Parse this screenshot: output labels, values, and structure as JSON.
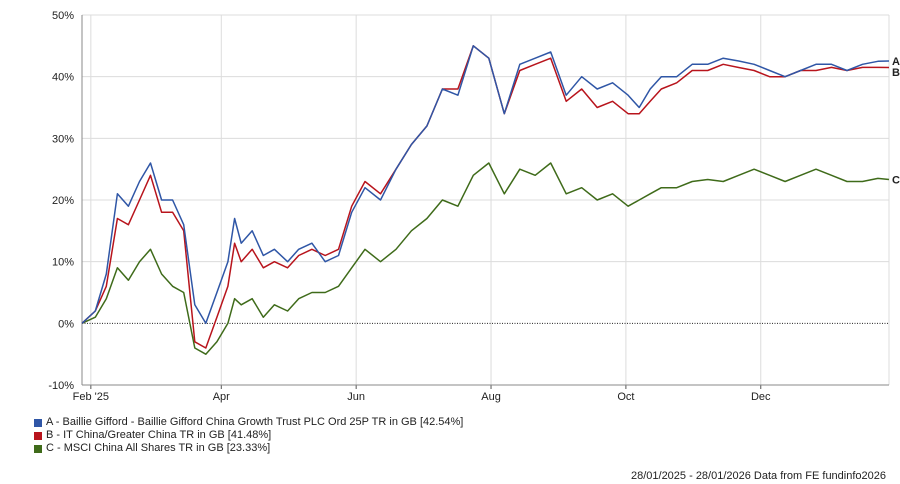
{
  "chart_data": {
    "type": "line",
    "ylim": [
      -10,
      50
    ],
    "y_ticks": [
      -10,
      0,
      10,
      20,
      30,
      40,
      50
    ],
    "y_tick_labels": [
      "-10%",
      "0%",
      "10%",
      "20%",
      "30%",
      "40%",
      "50%"
    ],
    "x_range": [
      "2025-01-28",
      "2026-01-28"
    ],
    "x_ticks": [
      {
        "date": "2025-02-01",
        "label": "Feb '25"
      },
      {
        "date": "2025-04-01",
        "label": "Apr"
      },
      {
        "date": "2025-06-01",
        "label": "Jun"
      },
      {
        "date": "2025-08-01",
        "label": "Aug"
      },
      {
        "date": "2025-10-01",
        "label": "Oct"
      },
      {
        "date": "2025-12-01",
        "label": "Dec"
      }
    ],
    "grid": true,
    "zero_line": true,
    "series": [
      {
        "key": "A",
        "color": "#2f56a6",
        "x": [
          "2025-01-28",
          "2025-02-03",
          "2025-02-08",
          "2025-02-13",
          "2025-02-18",
          "2025-02-23",
          "2025-02-28",
          "2025-03-05",
          "2025-03-10",
          "2025-03-15",
          "2025-03-20",
          "2025-03-25",
          "2025-03-30",
          "2025-04-04",
          "2025-04-07",
          "2025-04-10",
          "2025-04-15",
          "2025-04-20",
          "2025-04-25",
          "2025-05-01",
          "2025-05-06",
          "2025-05-12",
          "2025-05-18",
          "2025-05-24",
          "2025-05-30",
          "2025-06-05",
          "2025-06-12",
          "2025-06-19",
          "2025-06-26",
          "2025-07-03",
          "2025-07-10",
          "2025-07-17",
          "2025-07-24",
          "2025-07-31",
          "2025-08-07",
          "2025-08-14",
          "2025-08-21",
          "2025-08-28",
          "2025-09-04",
          "2025-09-11",
          "2025-09-18",
          "2025-09-25",
          "2025-10-02",
          "2025-10-07",
          "2025-10-12",
          "2025-10-17",
          "2025-10-24",
          "2025-10-31",
          "2025-11-07",
          "2025-11-14",
          "2025-11-21",
          "2025-11-28",
          "2025-12-05",
          "2025-12-12",
          "2025-12-19",
          "2025-12-26",
          "2026-01-02",
          "2026-01-09",
          "2026-01-16",
          "2026-01-23",
          "2026-01-28"
        ],
        "values": [
          0,
          2,
          8,
          21,
          19,
          23,
          26,
          20,
          20,
          16,
          3,
          0,
          5,
          10,
          17,
          13,
          15,
          11,
          12,
          10,
          12,
          13,
          10,
          11,
          18,
          22,
          20,
          25,
          29,
          32,
          38,
          37,
          45,
          43,
          34,
          42,
          43,
          44,
          37,
          40,
          38,
          39,
          37,
          35,
          38,
          40,
          40,
          42,
          42,
          43,
          42.54,
          42,
          41,
          40,
          41,
          42,
          42,
          41,
          42,
          42.5,
          42.54
        ]
      },
      {
        "key": "B",
        "color": "#b8141c",
        "x": [
          "2025-01-28",
          "2025-02-03",
          "2025-02-08",
          "2025-02-13",
          "2025-02-18",
          "2025-02-23",
          "2025-02-28",
          "2025-03-05",
          "2025-03-10",
          "2025-03-15",
          "2025-03-20",
          "2025-03-25",
          "2025-03-30",
          "2025-04-04",
          "2025-04-07",
          "2025-04-10",
          "2025-04-15",
          "2025-04-20",
          "2025-04-25",
          "2025-05-01",
          "2025-05-06",
          "2025-05-12",
          "2025-05-18",
          "2025-05-24",
          "2025-05-30",
          "2025-06-05",
          "2025-06-12",
          "2025-06-19",
          "2025-06-26",
          "2025-07-03",
          "2025-07-10",
          "2025-07-17",
          "2025-07-24",
          "2025-07-31",
          "2025-08-07",
          "2025-08-14",
          "2025-08-21",
          "2025-08-28",
          "2025-09-04",
          "2025-09-11",
          "2025-09-18",
          "2025-09-25",
          "2025-10-02",
          "2025-10-07",
          "2025-10-12",
          "2025-10-17",
          "2025-10-24",
          "2025-10-31",
          "2025-11-07",
          "2025-11-14",
          "2025-11-21",
          "2025-11-28",
          "2025-12-05",
          "2025-12-12",
          "2025-12-19",
          "2025-12-26",
          "2026-01-02",
          "2026-01-09",
          "2026-01-16",
          "2026-01-23",
          "2026-01-28"
        ],
        "values": [
          0,
          2,
          6,
          17,
          16,
          20,
          24,
          18,
          18,
          15,
          -3,
          -4,
          1,
          6,
          13,
          10,
          12,
          9,
          10,
          9,
          11,
          12,
          11,
          12,
          19,
          23,
          21,
          25,
          29,
          32,
          38,
          38,
          45,
          43,
          34,
          41,
          42,
          43,
          36,
          38,
          35,
          36,
          34,
          34,
          36,
          38,
          39,
          41,
          41,
          42,
          41.48,
          41,
          40,
          40,
          41,
          41,
          41.5,
          41,
          41.5,
          41.5,
          41.48
        ]
      },
      {
        "key": "C",
        "color": "#3f6b1a",
        "x": [
          "2025-01-28",
          "2025-02-03",
          "2025-02-08",
          "2025-02-13",
          "2025-02-18",
          "2025-02-23",
          "2025-02-28",
          "2025-03-05",
          "2025-03-10",
          "2025-03-15",
          "2025-03-20",
          "2025-03-25",
          "2025-03-30",
          "2025-04-04",
          "2025-04-07",
          "2025-04-10",
          "2025-04-15",
          "2025-04-20",
          "2025-04-25",
          "2025-05-01",
          "2025-05-06",
          "2025-05-12",
          "2025-05-18",
          "2025-05-24",
          "2025-05-30",
          "2025-06-05",
          "2025-06-12",
          "2025-06-19",
          "2025-06-26",
          "2025-07-03",
          "2025-07-10",
          "2025-07-17",
          "2025-07-24",
          "2025-07-31",
          "2025-08-07",
          "2025-08-14",
          "2025-08-21",
          "2025-08-28",
          "2025-09-04",
          "2025-09-11",
          "2025-09-18",
          "2025-09-25",
          "2025-10-02",
          "2025-10-07",
          "2025-10-12",
          "2025-10-17",
          "2025-10-24",
          "2025-10-31",
          "2025-11-07",
          "2025-11-14",
          "2025-11-21",
          "2025-11-28",
          "2025-12-05",
          "2025-12-12",
          "2025-12-19",
          "2025-12-26",
          "2026-01-02",
          "2026-01-09",
          "2026-01-16",
          "2026-01-23",
          "2026-01-28"
        ],
        "values": [
          0,
          1,
          4,
          9,
          7,
          10,
          12,
          8,
          6,
          5,
          -4,
          -5,
          -3,
          0,
          4,
          3,
          4,
          1,
          3,
          2,
          4,
          5,
          5,
          6,
          9,
          12,
          10,
          12,
          15,
          17,
          20,
          19,
          24,
          26,
          21,
          25,
          24,
          26,
          21,
          22,
          20,
          21,
          19,
          20,
          21,
          22,
          22,
          23,
          23.33,
          23,
          24,
          25,
          24,
          23,
          24,
          25,
          24,
          23,
          23,
          23.5,
          23.33
        ]
      }
    ]
  },
  "legend": {
    "items": [
      {
        "color": "#2f56a6",
        "label": "A - Baillie Gifford - Baillie Gifford China Growth Trust PLC Ord 25P TR in GB [42.54%]"
      },
      {
        "color": "#b8141c",
        "label": "B - IT China/Greater China TR in GB [41.48%]"
      },
      {
        "color": "#3f6b1a",
        "label": "C - MSCI China All Shares TR in GB [23.33%]"
      }
    ]
  },
  "footer": {
    "text": "28/01/2025 - 28/01/2026 Data from FE fundinfo2026"
  }
}
